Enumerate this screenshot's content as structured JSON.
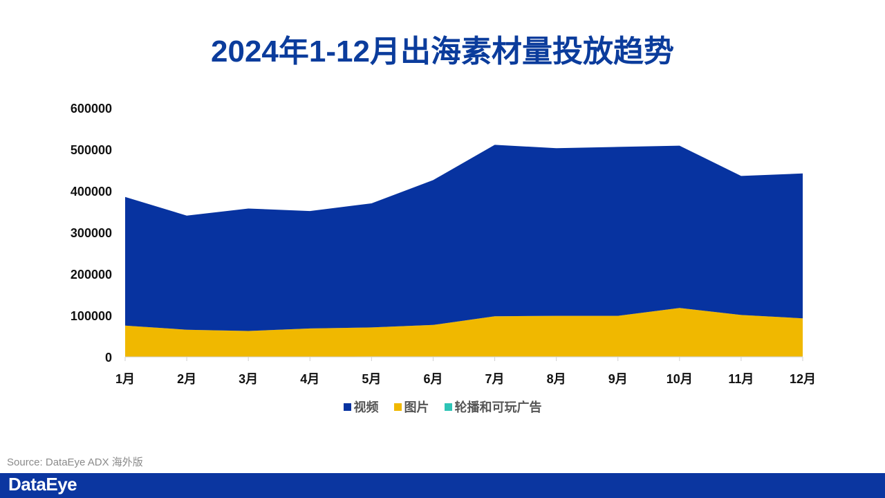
{
  "page": {
    "title": "2024年1-12月出海素材量投放趋势",
    "source": "Source: DataEye ADX 海外版",
    "brand": "DataEye"
  },
  "chart_data": {
    "type": "area",
    "stacked": true,
    "title": "2024年1-12月出海素材量投放趋势",
    "categories": [
      "1月",
      "2月",
      "3月",
      "4月",
      "5月",
      "6月",
      "7月",
      "8月",
      "9月",
      "10月",
      "11月",
      "12月"
    ],
    "ylim": [
      0,
      600000
    ],
    "yticks": [
      "600000",
      "500000",
      "400000",
      "300000",
      "200000",
      "100000",
      "0"
    ],
    "ytick_values": [
      600000,
      500000,
      400000,
      300000,
      200000,
      100000,
      0
    ],
    "legend_position": "bottom",
    "grid": false,
    "series": [
      {
        "name": "轮播和可玩广告",
        "color": "#2ec4b6",
        "values": [
          500,
          500,
          500,
          500,
          1000,
          1000,
          1000,
          1000,
          1000,
          1000,
          1000,
          1000
        ]
      },
      {
        "name": "图片",
        "color": "#f0b800",
        "values": [
          75000,
          65000,
          62000,
          68000,
          70000,
          76000,
          97000,
          98000,
          98000,
          117000,
          100000,
          92000
        ]
      },
      {
        "name": "视频",
        "color": "#0733a0",
        "values": [
          310000,
          275000,
          295000,
          283000,
          299000,
          349000,
          413000,
          404000,
          407000,
          391000,
          335000,
          349000
        ]
      }
    ],
    "legend": [
      {
        "name": "视频",
        "color": "#0733a0"
      },
      {
        "name": "图片",
        "color": "#f0b800"
      },
      {
        "name": "轮播和可玩广告",
        "color": "#2ec4b6"
      }
    ]
  }
}
